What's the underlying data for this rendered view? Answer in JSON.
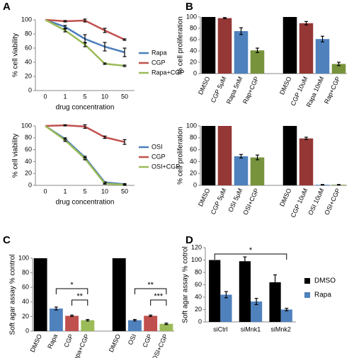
{
  "panel_labels": [
    "A",
    "B",
    "C",
    "D"
  ],
  "chart_data": [
    {
      "type": "line",
      "ylabel": "% cell viability",
      "xlabel": "drug concentration",
      "categories": [
        "0",
        "1",
        "5",
        "10",
        "50"
      ],
      "ylim": [
        0,
        100
      ],
      "yticks": [
        0,
        20,
        40,
        60,
        80,
        100
      ],
      "series": [
        {
          "name": "Rapa",
          "color": "#4a7ebb",
          "values": [
            100,
            90,
            73,
            62,
            54
          ],
          "errors": [
            0,
            2,
            6,
            6,
            6
          ]
        },
        {
          "name": "CGP",
          "color": "#c0504d",
          "values": [
            100,
            98,
            99,
            85,
            72
          ],
          "errors": [
            0,
            1,
            2,
            3,
            1
          ]
        },
        {
          "name": "Rapa+CGP",
          "color": "#9bbb59",
          "values": [
            100,
            85,
            65,
            38,
            35
          ],
          "errors": [
            0,
            2,
            3,
            1,
            1
          ]
        }
      ]
    },
    {
      "type": "line",
      "ylabel": "% cell viability",
      "xlabel": "drug concentration",
      "categories": [
        "0",
        "1",
        "5",
        "10",
        "50"
      ],
      "ylim": [
        0,
        100
      ],
      "yticks": [
        0,
        20,
        40,
        60,
        80,
        100
      ],
      "series": [
        {
          "name": "OSI",
          "color": "#4a7ebb",
          "values": [
            100,
            78,
            47,
            5,
            2
          ],
          "errors": [
            0,
            2,
            2,
            1,
            1
          ]
        },
        {
          "name": "CGP",
          "color": "#c0504d",
          "values": [
            100,
            101,
            99,
            81,
            73
          ],
          "errors": [
            0,
            1,
            3,
            2,
            4
          ]
        },
        {
          "name": "OSI+CGP",
          "color": "#9bbb59",
          "values": [
            100,
            76,
            45,
            3,
            1
          ],
          "errors": [
            0,
            2,
            2,
            1,
            1
          ]
        }
      ]
    },
    {
      "type": "bar",
      "ylabel": "% cell proliferation",
      "categories": [
        "DMSO",
        "CGP 5μM",
        "Rapa 5nM",
        "Rap+CGP",
        "DMSO",
        "CGP 10uM",
        "Rapa 10nM",
        "Rap+CGP"
      ],
      "values": [
        100,
        98,
        75,
        41,
        100,
        89,
        61,
        17
      ],
      "errors": [
        0,
        1,
        6,
        4,
        0,
        3,
        5,
        3
      ],
      "colors": [
        "#000000",
        "#953735",
        "#4f81bd",
        "#77933c",
        "#000000",
        "#953735",
        "#4f81bd",
        "#77933c"
      ],
      "ylim": [
        0,
        100
      ],
      "yticks": [
        0,
        20,
        40,
        60,
        80,
        100
      ]
    },
    {
      "type": "bar",
      "ylabel": "% cell proliferation",
      "categories": [
        "DMSO",
        "CGP 5μM",
        "OSI 5μM",
        "OSI+CGP",
        "DMSO",
        "CGP 10uM",
        "OSI 10uM",
        "OSI+CGP"
      ],
      "values": [
        100,
        100,
        49,
        47,
        100,
        79,
        1,
        1
      ],
      "errors": [
        0,
        0,
        3,
        4,
        0,
        2,
        0.5,
        0.5
      ],
      "colors": [
        "#000000",
        "#953735",
        "#4f81bd",
        "#77933c",
        "#000000",
        "#953735",
        "#4f81bd",
        "#77933c"
      ],
      "ylim": [
        0,
        100
      ],
      "yticks": [
        0,
        20,
        40,
        60,
        80,
        100
      ]
    },
    {
      "type": "bar",
      "ylabel": "Soft agar assay % control",
      "categories": [
        "DMSO",
        "Rapa",
        "CGP",
        "Rapa+CGP",
        "DMSO",
        "OSI",
        "CGP",
        "OSI+CGP"
      ],
      "values": [
        100,
        31,
        21,
        15,
        100,
        15,
        21,
        10
      ],
      "errors": [
        0,
        2,
        1,
        1,
        0,
        1,
        1,
        1
      ],
      "colors": [
        "#000000",
        "#4f81bd",
        "#c0504d",
        "#9bbb59",
        "#000000",
        "#4f81bd",
        "#c0504d",
        "#9bbb59"
      ],
      "ylim": [
        0,
        100
      ],
      "yticks": [
        0,
        20,
        40,
        60,
        80,
        100
      ],
      "annotations": [
        "*",
        "**",
        "**",
        "***"
      ]
    },
    {
      "type": "bar",
      "ylabel": "Soft agar assay % cotrol",
      "categories": [
        "siCtrl",
        "siMnk1",
        "siMnk2"
      ],
      "series": [
        {
          "name": "DMSO",
          "color": "#000000",
          "values": [
            100,
            98,
            64
          ],
          "errors": [
            0,
            7,
            12
          ]
        },
        {
          "name": "Rapa",
          "color": "#4f81bd",
          "values": [
            44,
            33,
            20
          ],
          "errors": [
            5,
            5,
            2
          ]
        }
      ],
      "ylim": [
        0,
        120
      ],
      "yticks": [
        0,
        20,
        40,
        60,
        80,
        100,
        120
      ],
      "legend": "right",
      "annotations": [
        "*"
      ]
    }
  ]
}
